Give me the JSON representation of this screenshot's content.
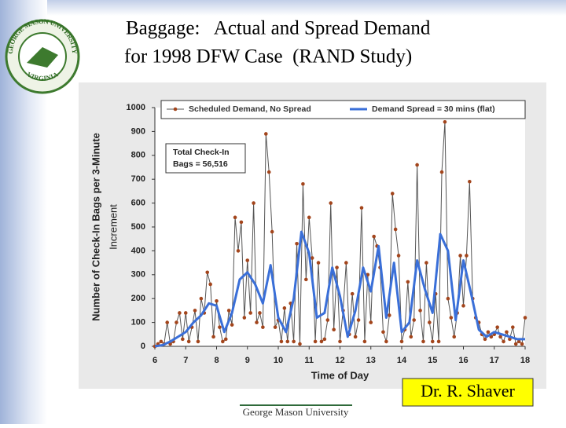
{
  "slide": {
    "title_lines": [
      "Baggage:   Actual and Spread Demand",
      "for 1998 DFW Case  (RAND Study)"
    ],
    "logo": {
      "top": "GEORGE MASON UNIVERSITY",
      "bottom": "VIRGINIA"
    },
    "footer": "George Mason University",
    "author": "Dr. R. Shaver"
  },
  "chart_data": {
    "type": "line",
    "xlabel": "Time of Day",
    "ylabel": [
      "Number of Check-In Bags per 3-Minute",
      "Increment"
    ],
    "annotation": [
      "Total Check-In",
      "Bags = 56,516"
    ],
    "xlim": [
      6,
      18
    ],
    "ylim": [
      0,
      1000
    ],
    "xticks": [
      6,
      7,
      8,
      9,
      10,
      11,
      12,
      13,
      14,
      15,
      16,
      17,
      18
    ],
    "yticks": [
      0,
      100,
      200,
      300,
      400,
      500,
      600,
      700,
      800,
      900,
      1000
    ],
    "legend": "top",
    "series": [
      {
        "name": "Scheduled Demand, No Spread",
        "color": "#555555",
        "marker_color": "#a3451c",
        "x": [
          6.0,
          6.1,
          6.2,
          6.3,
          6.4,
          6.5,
          6.6,
          6.7,
          6.8,
          6.9,
          7.0,
          7.1,
          7.2,
          7.3,
          7.4,
          7.5,
          7.6,
          7.7,
          7.8,
          7.9,
          8.0,
          8.1,
          8.2,
          8.3,
          8.4,
          8.5,
          8.6,
          8.7,
          8.8,
          8.9,
          9.0,
          9.1,
          9.2,
          9.3,
          9.4,
          9.5,
          9.6,
          9.7,
          9.8,
          9.9,
          10.0,
          10.1,
          10.2,
          10.3,
          10.4,
          10.5,
          10.6,
          10.7,
          10.8,
          10.9,
          11.0,
          11.1,
          11.2,
          11.3,
          11.4,
          11.5,
          11.6,
          11.7,
          11.8,
          11.9,
          12.0,
          12.1,
          12.2,
          12.3,
          12.4,
          12.5,
          12.6,
          12.7,
          12.8,
          12.9,
          13.0,
          13.1,
          13.2,
          13.3,
          13.4,
          13.5,
          13.6,
          13.7,
          13.8,
          13.9,
          14.0,
          14.1,
          14.2,
          14.3,
          14.4,
          14.5,
          14.6,
          14.7,
          14.8,
          14.9,
          15.0,
          15.1,
          15.2,
          15.3,
          15.4,
          15.5,
          15.6,
          15.7,
          15.8,
          15.9,
          16.0,
          16.1,
          16.2,
          16.3,
          16.4,
          16.5,
          16.6,
          16.7,
          16.8,
          16.9,
          17.0,
          17.1,
          17.2,
          17.3,
          17.4,
          17.5,
          17.6,
          17.7,
          17.8,
          17.9,
          18.0
        ],
        "values": [
          0,
          10,
          20,
          10,
          100,
          10,
          20,
          100,
          140,
          30,
          140,
          20,
          80,
          150,
          20,
          200,
          140,
          310,
          260,
          40,
          190,
          80,
          20,
          30,
          150,
          90,
          540,
          400,
          520,
          120,
          360,
          140,
          600,
          100,
          140,
          80,
          890,
          730,
          480,
          80,
          110,
          20,
          160,
          20,
          180,
          20,
          430,
          10,
          680,
          280,
          540,
          370,
          20,
          350,
          20,
          30,
          110,
          600,
          70,
          330,
          20,
          150,
          350,
          50,
          220,
          40,
          110,
          580,
          20,
          300,
          100,
          460,
          420,
          330,
          60,
          20,
          130,
          640,
          490,
          380,
          20,
          70,
          270,
          40,
          110,
          760,
          150,
          20,
          350,
          100,
          20,
          220,
          20,
          730,
          940,
          200,
          120,
          40,
          140,
          380,
          170,
          380,
          690,
          200,
          120,
          100,
          50,
          30,
          60,
          40,
          50,
          80,
          40,
          20,
          60,
          30,
          80,
          10,
          20,
          10,
          120
        ]
      },
      {
        "name": "Demand Spread = 30 mins (flat)",
        "color": "#3a6fd8",
        "x": [
          6.0,
          6.25,
          6.5,
          6.75,
          7.0,
          7.25,
          7.5,
          7.75,
          8.0,
          8.25,
          8.5,
          8.75,
          9.0,
          9.25,
          9.5,
          9.75,
          10.0,
          10.25,
          10.5,
          10.75,
          11.0,
          11.25,
          11.5,
          11.75,
          12.0,
          12.25,
          12.5,
          12.75,
          13.0,
          13.25,
          13.5,
          13.75,
          14.0,
          14.25,
          14.5,
          14.75,
          15.0,
          15.25,
          15.5,
          15.75,
          16.0,
          16.25,
          16.5,
          16.75,
          17.0,
          17.25,
          17.5,
          17.75,
          18.0
        ],
        "values": [
          0,
          5,
          20,
          40,
          60,
          100,
          130,
          180,
          170,
          60,
          140,
          280,
          310,
          260,
          180,
          340,
          120,
          60,
          200,
          480,
          390,
          120,
          140,
          330,
          210,
          40,
          150,
          330,
          230,
          420,
          120,
          350,
          60,
          100,
          360,
          240,
          140,
          470,
          400,
          110,
          360,
          220,
          70,
          40,
          60,
          50,
          40,
          30,
          30
        ]
      }
    ]
  }
}
